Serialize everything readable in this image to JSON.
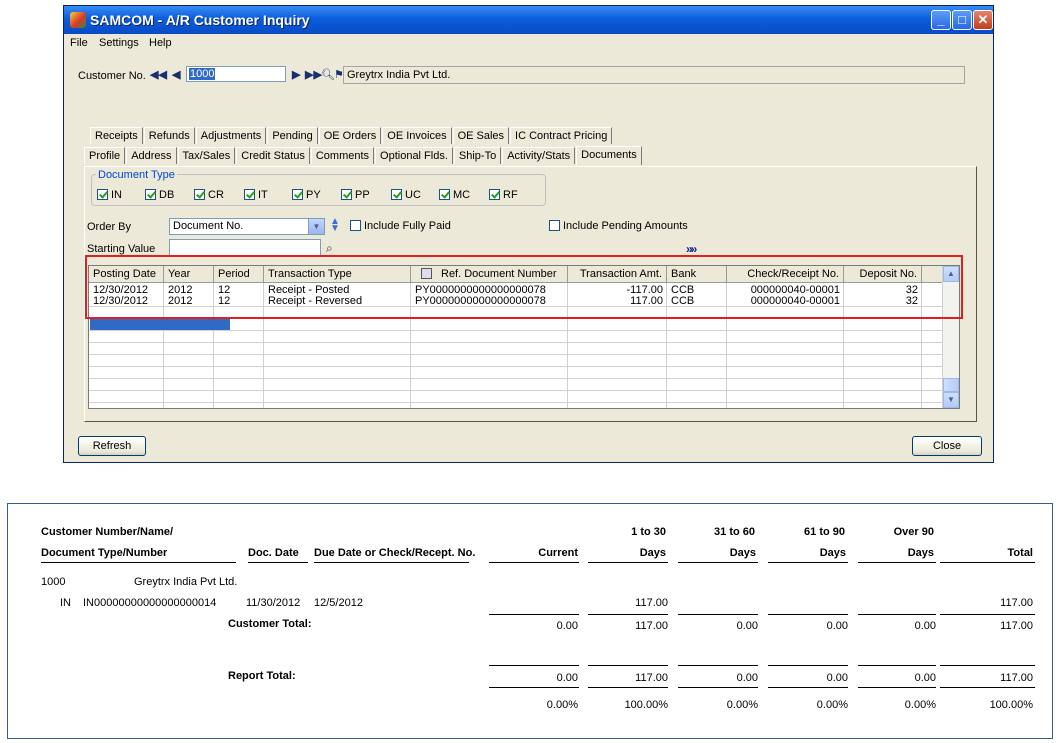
{
  "window": {
    "title": "SAMCOM - A/R Customer Inquiry",
    "controls": [
      "_",
      "□",
      "✕"
    ]
  },
  "menu": [
    "File",
    "Settings",
    "Help"
  ],
  "customer": {
    "label": "Customer No.",
    "number": "1000",
    "name": "Greytrx India Pvt Ltd."
  },
  "tabs_row1": [
    "Receipts",
    "Refunds",
    "Adjustments",
    "Pending",
    "OE Orders",
    "OE Invoices",
    "OE Sales",
    "IC Contract Pricing"
  ],
  "tabs_row2": [
    "Profile",
    "Address",
    "Tax/Sales",
    "Credit Status",
    "Comments",
    "Optional Flds.",
    "Ship-To",
    "Activity/Stats",
    "Documents"
  ],
  "active_tab": "Documents",
  "document_type": {
    "legend": "Document Type",
    "types": [
      {
        "code": "IN",
        "checked": true
      },
      {
        "code": "DB",
        "checked": true
      },
      {
        "code": "CR",
        "checked": true
      },
      {
        "code": "IT",
        "checked": true
      },
      {
        "code": "PY",
        "checked": true
      },
      {
        "code": "PP",
        "checked": true
      },
      {
        "code": "UC",
        "checked": true
      },
      {
        "code": "MC",
        "checked": true
      },
      {
        "code": "RF",
        "checked": true
      }
    ]
  },
  "filters": {
    "order_by_label": "Order By",
    "order_by_value": "Document No.",
    "include_fully_paid": "Include Fully Paid",
    "include_pending": "Include Pending Amounts",
    "starting_value_label": "Starting Value",
    "starting_value": ""
  },
  "grid": {
    "columns": [
      "Posting Date",
      "Year",
      "Period",
      "Transaction Type",
      "Ref. Document Number",
      "Transaction Amt.",
      "Bank",
      "Check/Receipt No.",
      "Deposit No."
    ],
    "rows": [
      [
        "12/30/2012",
        "2012",
        "12",
        "Receipt - Posted",
        "PY0000000000000000078",
        "-117.00",
        "CCB",
        "000000040-00001",
        "32"
      ],
      [
        "12/30/2012",
        "2012",
        "12",
        "Receipt - Reversed",
        "PY0000000000000000078",
        "117.00",
        "CCB",
        "000000040-00001",
        "32"
      ]
    ]
  },
  "buttons": {
    "refresh": "Refresh",
    "close": "Close"
  },
  "report": {
    "header1": {
      "customer": "Customer Number/Name/",
      "b1": "1  to  30",
      "b2": "31  to  60",
      "b3": "61  to  90",
      "b4": "Over  90"
    },
    "header2": {
      "doc": "Document Type/Number",
      "date": "Doc. Date",
      "due": "Due Date or Check/Recept. No.",
      "current": "Current",
      "d1": "Days",
      "d2": "Days",
      "d3": "Days",
      "d4": "Days",
      "total": "Total"
    },
    "customer_line": {
      "number": "1000",
      "name": "Greytrx India Pvt Ltd."
    },
    "doc_line": {
      "type": "IN",
      "number": "IN00000000000000000014",
      "date": "11/30/2012",
      "due": "12/5/2012",
      "b1": "117.00",
      "total": "117.00"
    },
    "customer_total": {
      "label": "Customer Total:",
      "current": "0.00",
      "b1": "117.00",
      "b2": "0.00",
      "b3": "0.00",
      "b4": "0.00",
      "total": "117.00"
    },
    "report_total": {
      "label": "Report Total:",
      "current": "0.00",
      "b1": "117.00",
      "b2": "0.00",
      "b3": "0.00",
      "b4": "0.00",
      "total": "117.00"
    },
    "percent": {
      "current": "0.00%",
      "b1": "100.00%",
      "b2": "0.00%",
      "b3": "0.00%",
      "b4": "0.00%",
      "total": "100.00%"
    }
  }
}
